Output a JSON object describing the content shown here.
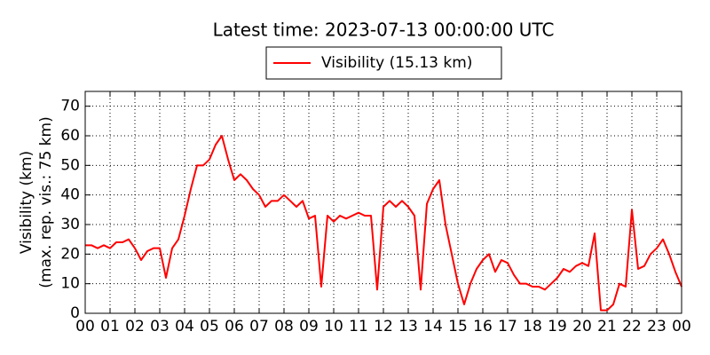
{
  "chart_data": {
    "type": "line",
    "title": "Latest time: 2023-07-13 00:00:00 UTC",
    "ylabel": [
      "Visibility (km)",
      "(max. rep. vis.: 75 km)"
    ],
    "x": [
      0,
      0.25,
      0.5,
      0.75,
      1,
      1.25,
      1.5,
      1.75,
      2,
      2.25,
      2.5,
      2.75,
      3,
      3.25,
      3.5,
      3.75,
      4,
      4.25,
      4.5,
      4.75,
      5,
      5.25,
      5.5,
      5.75,
      6,
      6.25,
      6.5,
      6.75,
      7,
      7.25,
      7.5,
      7.75,
      8,
      8.25,
      8.5,
      8.75,
      9,
      9.25,
      9.5,
      9.75,
      10,
      10.25,
      10.5,
      10.75,
      11,
      11.25,
      11.5,
      11.75,
      12,
      12.25,
      12.5,
      12.75,
      13,
      13.25,
      13.5,
      13.75,
      14,
      14.25,
      14.5,
      14.75,
      15,
      15.25,
      15.5,
      15.75,
      16,
      16.25,
      16.5,
      16.75,
      17,
      17.25,
      17.5,
      17.75,
      18,
      18.25,
      18.5,
      18.75,
      19,
      19.25,
      19.5,
      19.75,
      20,
      20.25,
      20.5,
      20.75,
      21,
      21.25,
      21.5,
      21.75,
      22,
      22.25,
      22.5,
      22.75,
      23,
      23.25,
      23.5,
      23.75,
      24
    ],
    "series": [
      {
        "name": "Visibility (15.13 km)",
        "color": "#ff0000",
        "values": [
          23,
          23,
          22,
          23,
          22,
          24,
          24,
          25,
          22,
          18,
          21,
          22,
          22,
          12,
          22,
          25,
          33,
          42,
          50,
          50,
          52,
          57,
          60,
          52,
          45,
          47,
          45,
          42,
          40,
          36,
          38,
          38,
          40,
          38,
          36,
          38,
          32,
          33,
          9,
          33,
          31,
          33,
          32,
          33,
          34,
          33,
          33,
          8,
          36,
          38,
          36,
          38,
          36,
          33,
          8,
          37,
          42,
          45,
          30,
          20,
          10,
          3,
          10,
          15,
          18,
          20,
          14,
          18,
          17,
          13,
          10,
          10,
          9,
          9,
          8,
          10,
          12,
          15,
          14,
          16,
          17,
          16,
          27,
          1,
          1,
          3,
          10,
          9,
          35,
          15,
          16,
          20,
          22,
          25,
          20,
          14,
          9
        ]
      }
    ],
    "xlim": [
      0,
      24
    ],
    "xticks": [
      {
        "value": 0,
        "label": "00"
      },
      {
        "value": 1,
        "label": "01"
      },
      {
        "value": 2,
        "label": "02"
      },
      {
        "value": 3,
        "label": "03"
      },
      {
        "value": 4,
        "label": "04"
      },
      {
        "value": 5,
        "label": "05"
      },
      {
        "value": 6,
        "label": "06"
      },
      {
        "value": 7,
        "label": "07"
      },
      {
        "value": 8,
        "label": "08"
      },
      {
        "value": 9,
        "label": "09"
      },
      {
        "value": 10,
        "label": "10"
      },
      {
        "value": 11,
        "label": "11"
      },
      {
        "value": 12,
        "label": "12"
      },
      {
        "value": 13,
        "label": "13"
      },
      {
        "value": 14,
        "label": "14"
      },
      {
        "value": 15,
        "label": "15"
      },
      {
        "value": 16,
        "label": "16"
      },
      {
        "value": 17,
        "label": "17"
      },
      {
        "value": 18,
        "label": "18"
      },
      {
        "value": 19,
        "label": "19"
      },
      {
        "value": 20,
        "label": "20"
      },
      {
        "value": 21,
        "label": "21"
      },
      {
        "value": 22,
        "label": "22"
      },
      {
        "value": 23,
        "label": "23"
      },
      {
        "value": 24,
        "label": "00"
      }
    ],
    "ylim": [
      0,
      75
    ],
    "yticks": [
      0,
      10,
      20,
      30,
      40,
      50,
      60,
      70
    ],
    "grid": true,
    "legend": "top"
  }
}
